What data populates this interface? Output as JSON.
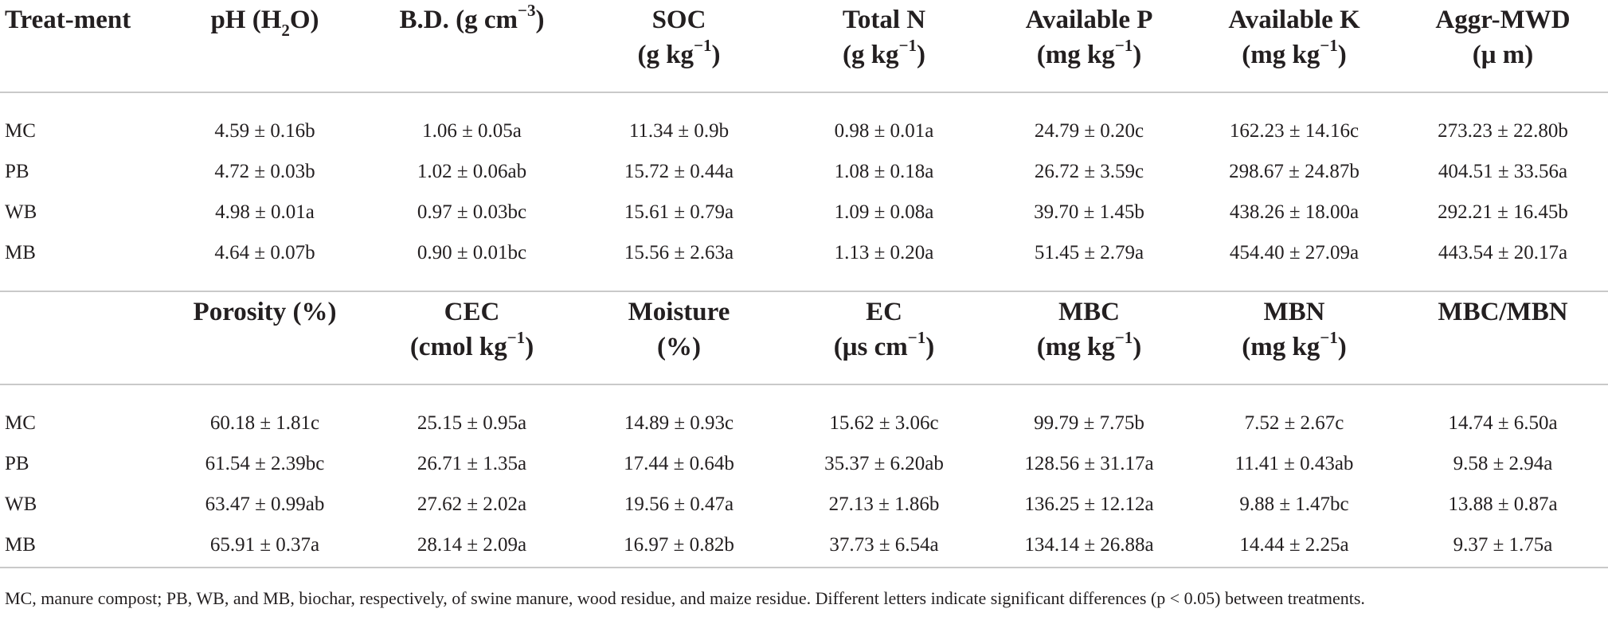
{
  "headers_top": [
    "Treat-ment",
    "pH (H2O)",
    "B.D. (g cm−3)",
    "SOC (g kg−1)",
    "Total N (g kg−1)",
    "Available P (mg kg−1)",
    "Available K (mg kg−1)",
    "Aggr-MWD (μ m)"
  ],
  "rows_top": [
    [
      "MC",
      "4.59 ± 0.16b",
      "1.06 ± 0.05a",
      "11.34 ± 0.9b",
      "0.98 ± 0.01a",
      "24.79 ± 0.20c",
      "162.23 ± 14.16c",
      "273.23 ± 22.80b"
    ],
    [
      "PB",
      "4.72 ± 0.03b",
      "1.02 ± 0.06ab",
      "15.72 ± 0.44a",
      "1.08 ± 0.18a",
      "26.72 ± 3.59c",
      "298.67 ± 24.87b",
      "404.51 ± 33.56a"
    ],
    [
      "WB",
      "4.98 ± 0.01a",
      "0.97 ± 0.03bc",
      "15.61 ± 0.79a",
      "1.09 ± 0.08a",
      "39.70 ± 1.45b",
      "438.26 ± 18.00a",
      "292.21 ± 16.45b"
    ],
    [
      "MB",
      "4.64 ± 0.07b",
      "0.90 ± 0.01bc",
      "15.56 ± 2.63a",
      "1.13 ± 0.20a",
      "51.45 ± 2.79a",
      "454.40 ± 27.09a",
      "443.54 ± 20.17a"
    ]
  ],
  "headers_bottom": [
    "",
    "Porosity (%)",
    "CEC (cmol kg−1)",
    "Moisture (%)",
    "EC (μs cm−1)",
    "MBC (mg kg−1)",
    "MBN (mg kg−1)",
    "MBC/MBN"
  ],
  "rows_bottom": [
    [
      "MC",
      "60.18 ± 1.81c",
      "25.15 ± 0.95a",
      "14.89 ± 0.93c",
      "15.62 ± 3.06c",
      "99.79 ± 7.75b",
      "7.52 ± 2.67c",
      "14.74 ± 6.50a"
    ],
    [
      "PB",
      "61.54 ± 2.39bc",
      "26.71 ± 1.35a",
      "17.44 ± 0.64b",
      "35.37 ± 6.20ab",
      "128.56 ± 31.17a",
      "11.41 ± 0.43ab",
      "9.58 ± 2.94a"
    ],
    [
      "WB",
      "63.47 ± 0.99ab",
      "27.62 ± 2.02a",
      "19.56 ± 0.47a",
      "27.13 ± 1.86b",
      "136.25 ± 12.12a",
      "9.88 ± 1.47bc",
      "13.88 ± 0.87a"
    ],
    [
      "MB",
      "65.91 ± 0.37a",
      "28.14 ± 2.09a",
      "16.97 ± 0.82b",
      "37.73 ± 6.54a",
      "134.14 ± 26.88a",
      "14.44 ± 2.25a",
      "9.37 ± 1.75a"
    ]
  ],
  "footnote": "MC, manure compost; PB, WB, and MB, biochar, respectively, of swine manure, wood residue, and maize residue. Different letters indicate significant differences (p < 0.05) between treatments."
}
